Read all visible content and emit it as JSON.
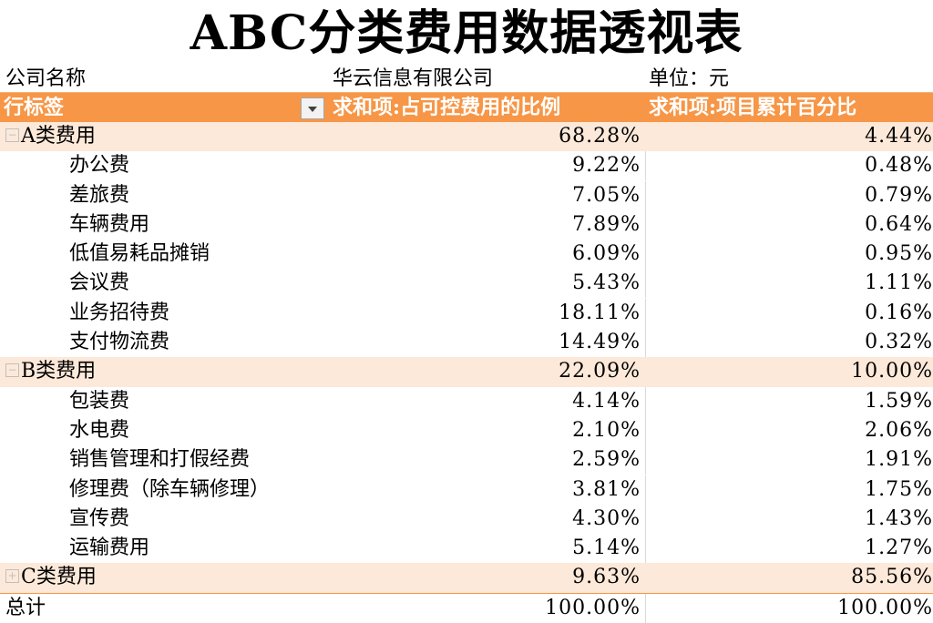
{
  "title": "ABC分类费用数据透视表",
  "info": {
    "company_label": "公司名称",
    "company_name": "华云信息有限公司",
    "unit_label": "单位：元"
  },
  "header": {
    "row_label": "行标签",
    "col1": "求和项:占可控费用的比例",
    "col2": "求和项:项目累计百分比"
  },
  "colors": {
    "header_bg": "#f79646",
    "group_bg": "#fde9d9"
  },
  "groups": [
    {
      "toggle": "−",
      "name": "A类费用",
      "v1": "68.28%",
      "v2": "4.44%",
      "items": [
        {
          "name": "办公费",
          "v1": "9.22%",
          "v2": "0.48%"
        },
        {
          "name": "差旅费",
          "v1": "7.05%",
          "v2": "0.79%"
        },
        {
          "name": "车辆费用",
          "v1": "7.89%",
          "v2": "0.64%"
        },
        {
          "name": "低值易耗品摊销",
          "v1": "6.09%",
          "v2": "0.95%"
        },
        {
          "name": "会议费",
          "v1": "5.43%",
          "v2": "1.11%"
        },
        {
          "name": "业务招待费",
          "v1": "18.11%",
          "v2": "0.16%"
        },
        {
          "name": "支付物流费",
          "v1": "14.49%",
          "v2": "0.32%"
        }
      ]
    },
    {
      "toggle": "−",
      "name": "B类费用",
      "v1": "22.09%",
      "v2": "10.00%",
      "items": [
        {
          "name": "包装费",
          "v1": "4.14%",
          "v2": "1.59%"
        },
        {
          "name": "水电费",
          "v1": "2.10%",
          "v2": "2.06%"
        },
        {
          "name": "销售管理和打假经费",
          "v1": "2.59%",
          "v2": "1.91%"
        },
        {
          "name": "修理费（除车辆修理）",
          "v1": "3.81%",
          "v2": "1.75%"
        },
        {
          "name": "宣传费",
          "v1": "4.30%",
          "v2": "1.43%"
        },
        {
          "name": "运输费用",
          "v1": "5.14%",
          "v2": "1.27%"
        }
      ]
    },
    {
      "toggle": "+",
      "name": "C类费用",
      "v1": "9.63%",
      "v2": "85.56%",
      "items": []
    }
  ],
  "total": {
    "label": "总计",
    "v1": "100.00%",
    "v2": "100.00%"
  }
}
